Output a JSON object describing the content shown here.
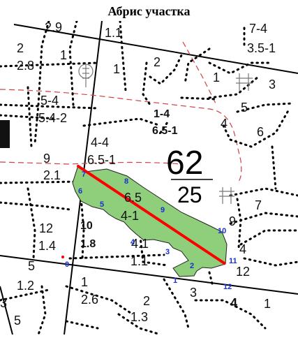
{
  "title": "Абрис участка",
  "quarter": {
    "number": "62",
    "area": "25"
  },
  "labels": [
    "2.9",
    "1.1",
    "7-4",
    "3.5-1",
    "2",
    "2.8",
    "1",
    "1",
    "2",
    "1",
    "3",
    "5-4",
    "5.4-2",
    "5",
    "1-4",
    "6.5-1",
    "4",
    "6",
    "4-4",
    "6.5-1",
    "9",
    "2.1",
    "6.5",
    "4-1",
    "7",
    "12",
    "1.4",
    "10",
    "1.8",
    "4.1",
    "9",
    "4",
    "5",
    "1.1",
    "12",
    "1.2",
    "1",
    "2.6",
    "2",
    "3",
    "4",
    "1",
    "3",
    "5",
    "1.3"
  ],
  "points": [
    "1",
    "2",
    "3",
    "4",
    "5",
    "6",
    "7",
    "8",
    "9",
    "10",
    "11",
    "12",
    "0"
  ],
  "colors": {
    "plot_fill": "#8fce7a",
    "axis_line": "#ff0000",
    "point_labels": "#1a2fd0",
    "boundary_dashed": "#d04040"
  },
  "icons": [
    "tree-icon",
    "tree-icon",
    "tree-icon"
  ]
}
